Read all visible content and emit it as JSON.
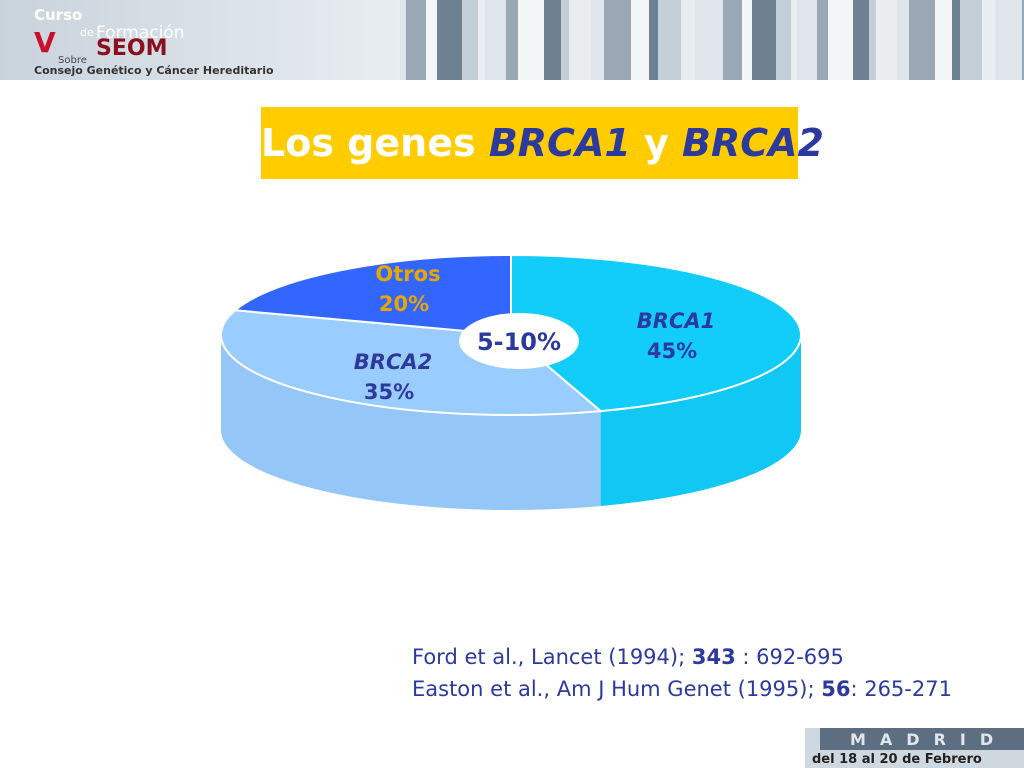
{
  "header": {
    "logo": {
      "line1": "Curso",
      "line2a": "de",
      "line2b": "Formación",
      "line3": "SEOM",
      "line4": "Sobre",
      "line5": "Consejo Genético y Cáncer Hereditario"
    }
  },
  "title_parts": [
    "Los genes ",
    "BRCA1",
    " y ",
    "BRCA2"
  ],
  "chart_data": {
    "type": "pie3d",
    "categories": [
      "BRCA1",
      "BRCA2",
      "Otros"
    ],
    "values": [
      45,
      35,
      20
    ],
    "value_labels": [
      "45%",
      "35%",
      "20%"
    ],
    "colors": [
      "#12cdfa",
      "#99ccff",
      "#3366ff"
    ],
    "annotation": "5-10%"
  },
  "references": [
    [
      "Ford et al., Lancet (1994); ",
      "343",
      " : 692-695"
    ],
    [
      "Easton et al., Am J Hum Genet (1995); ",
      "56",
      ": 265-271"
    ]
  ],
  "footer": {
    "city": "MADRID",
    "dates": "del 18 al 20 de Febrero"
  }
}
